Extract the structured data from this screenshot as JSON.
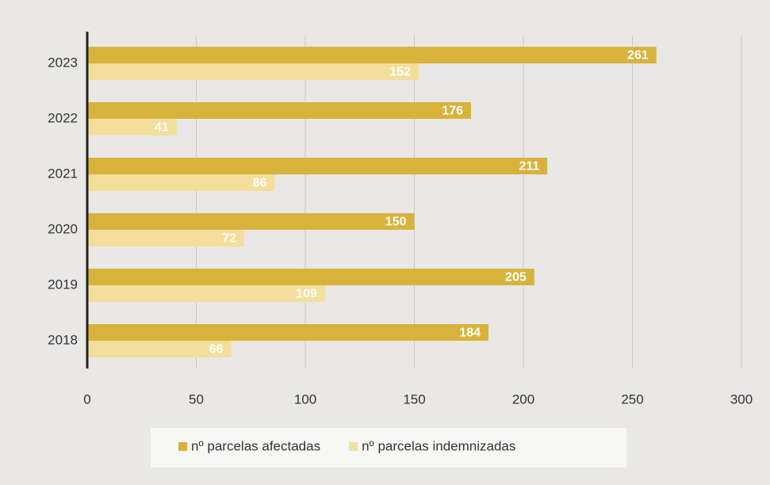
{
  "chart_data": {
    "type": "bar",
    "orientation": "horizontal",
    "categories": [
      "2023",
      "2022",
      "2021",
      "2020",
      "2019",
      "2018"
    ],
    "series": [
      {
        "name": "nº parcelas afectadas",
        "color": "#d8b33c",
        "values": [
          261,
          176,
          211,
          150,
          205,
          184
        ]
      },
      {
        "name": "nº parcelas indemnizadas",
        "color": "#f4de9c",
        "values": [
          152,
          41,
          86,
          72,
          109,
          66
        ]
      }
    ],
    "xlim": [
      0,
      300
    ],
    "xticks": [
      0,
      50,
      100,
      150,
      200,
      250,
      300
    ],
    "grid": true,
    "legend": "bottom"
  }
}
